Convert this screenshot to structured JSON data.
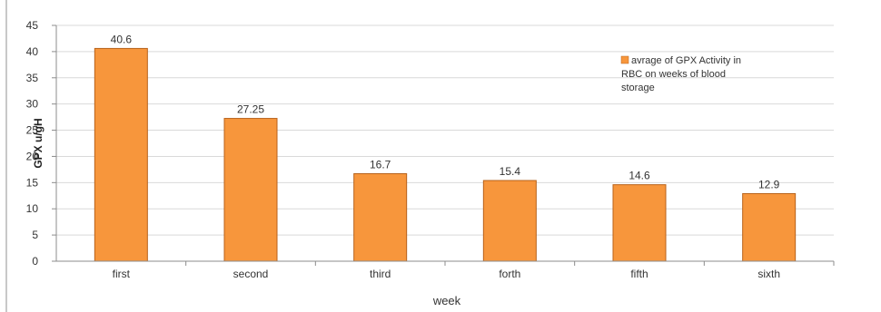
{
  "chart_data": {
    "type": "bar",
    "categories": [
      "first",
      "second",
      "third",
      "forth",
      "fifth",
      "sixth"
    ],
    "values": [
      40.6,
      27.25,
      16.7,
      15.4,
      14.6,
      12.9
    ],
    "value_labels": [
      "40.6",
      "27.25",
      "16.7",
      "15.4",
      "14.6",
      "12.9"
    ],
    "title": "",
    "xlabel": "week",
    "ylabel": "GPX u/gH",
    "ylim": [
      0,
      45
    ],
    "yticks": [
      "0",
      "5",
      "10",
      "15",
      "20",
      "25",
      "30",
      "35",
      "40",
      "45"
    ],
    "grid": true,
    "legend": {
      "position": "top-right",
      "lines": [
        "avrage of GPX Activity in",
        "RBC on weeks of blood",
        "storage"
      ]
    },
    "colors": {
      "bar_fill": "#f7963c",
      "bar_stroke": "#b8621a",
      "grid": "#d9d9d9",
      "axis": "#8c8c8c",
      "left_border": "#b5b5b5"
    }
  }
}
